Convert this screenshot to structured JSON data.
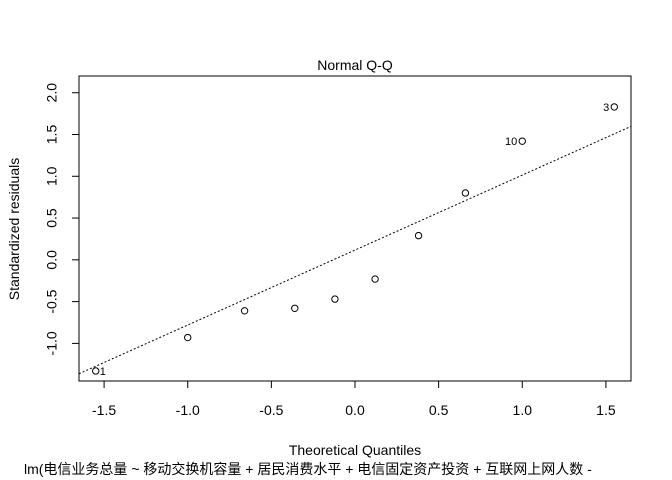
{
  "chart_data": {
    "type": "scatter",
    "title": "Normal Q-Q",
    "xlabel": "Theoretical Quantiles",
    "ylabel": "Standardized residuals",
    "caption": "lm(电信业务总量 ~ 移动交换机容量 + 居民消费水平 + 电信固定资产投资 + 互联网上网人数 -",
    "xlim": [
      -1.65,
      1.65
    ],
    "ylim": [
      -1.45,
      2.2
    ],
    "x_ticks": [
      -1.5,
      -1.0,
      -0.5,
      0.0,
      0.5,
      1.0,
      1.5
    ],
    "x_tick_labels": [
      "-1.5",
      "-1.0",
      "-0.5",
      "0.0",
      "0.5",
      "1.0",
      "1.5"
    ],
    "y_ticks": [
      -1.0,
      -0.5,
      0.0,
      0.5,
      1.0,
      1.5,
      2.0
    ],
    "y_tick_labels": [
      "-1.0",
      "-0.5",
      "0.0",
      "0.5",
      "1.0",
      "1.5",
      "2.0"
    ],
    "grid": false,
    "points": [
      {
        "x": -1.55,
        "y": -1.33,
        "label": "1"
      },
      {
        "x": -1.0,
        "y": -0.93,
        "label": ""
      },
      {
        "x": -0.66,
        "y": -0.61,
        "label": ""
      },
      {
        "x": -0.36,
        "y": -0.58,
        "label": ""
      },
      {
        "x": -0.12,
        "y": -0.47,
        "label": ""
      },
      {
        "x": 0.12,
        "y": -0.23,
        "label": ""
      },
      {
        "x": 0.38,
        "y": 0.29,
        "label": ""
      },
      {
        "x": 0.66,
        "y": 0.8,
        "label": ""
      },
      {
        "x": 1.0,
        "y": 1.42,
        "label": "10"
      },
      {
        "x": 1.55,
        "y": 1.83,
        "label": "3"
      }
    ],
    "reference_line": {
      "intercept": 0.117,
      "slope": 0.897
    }
  }
}
